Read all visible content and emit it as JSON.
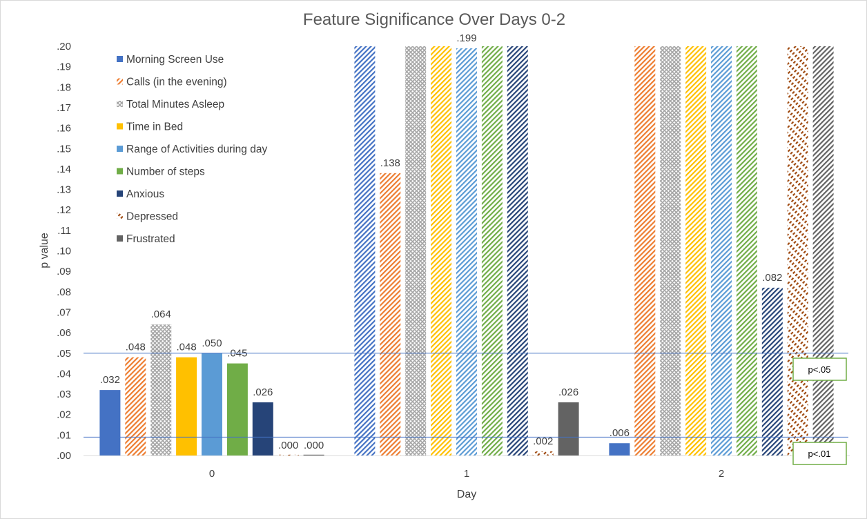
{
  "chart_data": {
    "type": "bar",
    "title": "Feature Significance Over Days 0-2",
    "xlabel": "Day",
    "ylabel": "p value",
    "categories": [
      "0",
      "1",
      "2"
    ],
    "ylim": [
      0,
      0.2
    ],
    "yticks": [
      ".00",
      ".01",
      ".02",
      ".03",
      ".04",
      ".05",
      ".06",
      ".07",
      ".08",
      ".09",
      ".10",
      ".11",
      ".12",
      ".13",
      ".14",
      ".15",
      ".16",
      ".17",
      ".18",
      ".19",
      ".20"
    ],
    "legend_position": "top-left",
    "grid": false,
    "series": [
      {
        "name": "Morning Screen Use",
        "color": "#4472c4",
        "values": [
          0.032,
          0.2,
          0.006
        ],
        "labels": [
          ".032",
          "",
          ".006"
        ],
        "patterns": [
          "solid",
          "diag",
          "solid"
        ]
      },
      {
        "name": "Calls (in the evening)",
        "color": "#ed7d31",
        "values": [
          0.048,
          0.138,
          0.2
        ],
        "labels": [
          ".048",
          ".138",
          ""
        ],
        "patterns": [
          "diag",
          "diag",
          "diag"
        ]
      },
      {
        "name": "Total Minutes Asleep",
        "color": "#a5a5a5",
        "values": [
          0.064,
          0.2,
          0.2
        ],
        "labels": [
          ".064",
          "",
          ""
        ],
        "patterns": [
          "cross",
          "cross",
          "cross"
        ]
      },
      {
        "name": "Time in Bed",
        "color": "#ffc000",
        "values": [
          0.048,
          0.2,
          0.2
        ],
        "labels": [
          ".048",
          "",
          ""
        ],
        "patterns": [
          "solid",
          "diag",
          "diag"
        ]
      },
      {
        "name": "Range of Activities during day",
        "color": "#5b9bd5",
        "values": [
          0.05,
          0.199,
          0.2
        ],
        "labels": [
          ".050",
          ".199",
          ""
        ],
        "patterns": [
          "solid",
          "diag",
          "diag"
        ]
      },
      {
        "name": "Number of steps",
        "color": "#70ad47",
        "values": [
          0.045,
          0.2,
          0.2
        ],
        "labels": [
          ".045",
          "",
          ""
        ],
        "patterns": [
          "solid",
          "diag",
          "diag"
        ]
      },
      {
        "name": "Anxious",
        "color": "#264478",
        "values": [
          0.026,
          0.2,
          0.082
        ],
        "labels": [
          ".026",
          "",
          ".082"
        ],
        "patterns": [
          "solid",
          "diag",
          "diag"
        ]
      },
      {
        "name": "Depressed",
        "color": "#9e480e",
        "values": [
          0.0,
          0.002,
          0.2
        ],
        "labels": [
          ".000",
          ".002",
          ""
        ],
        "patterns": [
          "dashdiag",
          "dashdiag",
          "dashdiag"
        ]
      },
      {
        "name": "Frustrated",
        "color": "#636363",
        "values": [
          0.0,
          0.026,
          0.2
        ],
        "labels": [
          ".000",
          ".026",
          ""
        ],
        "patterns": [
          "solid",
          "solid",
          "diag"
        ]
      }
    ],
    "thresholds": [
      {
        "label": "p<.05",
        "value": 0.05,
        "color": "#4472c4"
      },
      {
        "label": "p<.01",
        "value": 0.009,
        "color": "#4472c4"
      }
    ],
    "threshold_box_color": "#70ad47"
  }
}
